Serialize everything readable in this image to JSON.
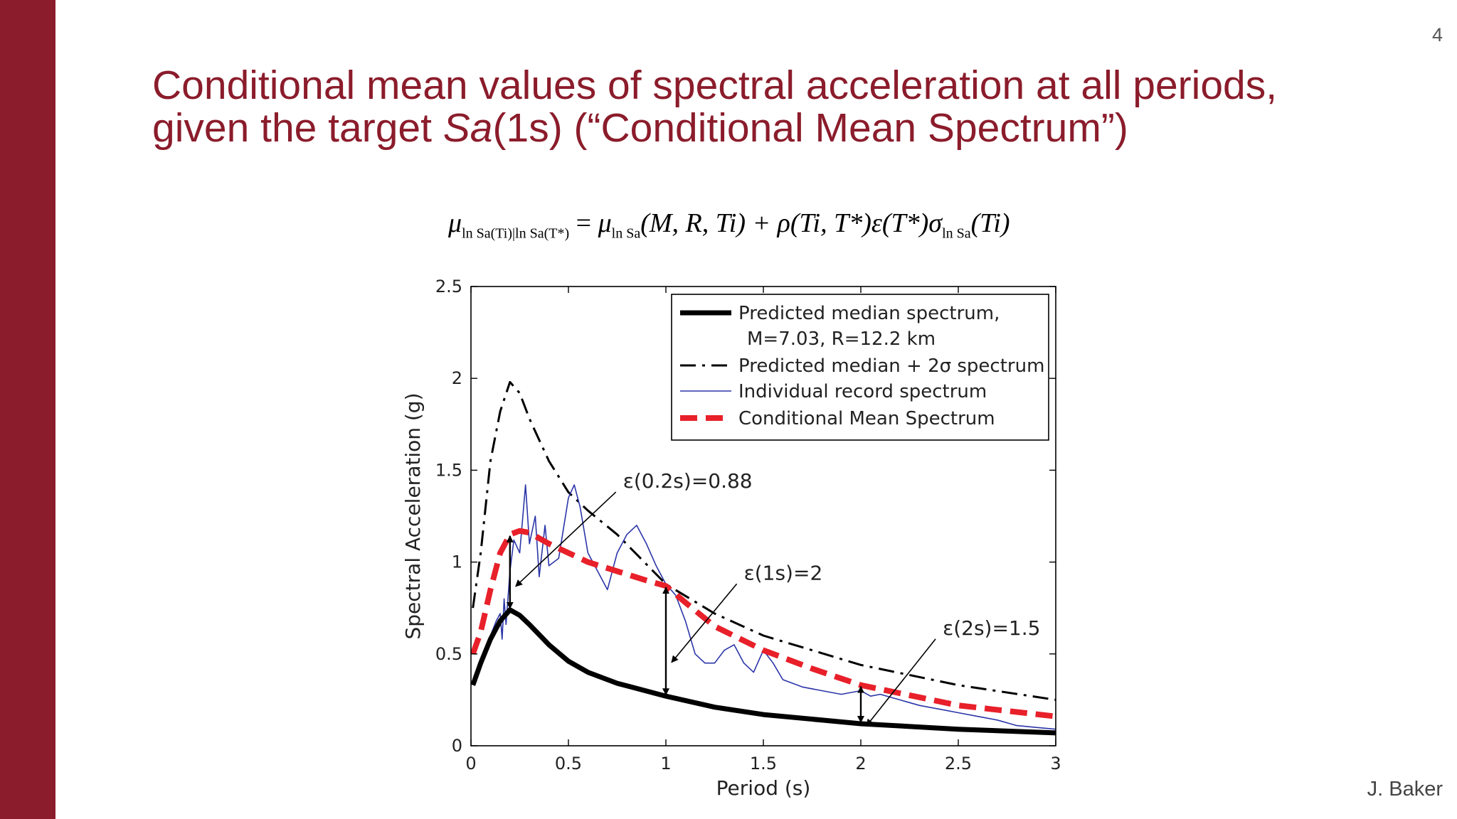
{
  "slide": {
    "number": "4",
    "title_line1": "Conditional mean values of spectral acceleration at all periods,",
    "title_line2_pre": "given the target ",
    "title_line2_ital": "Sa",
    "title_line2_post": "(1s) (“Conditional Mean Spectrum”)",
    "author": "J. Baker",
    "accent_color": "#8b1c2b"
  },
  "formula": {
    "lhs_mu": "μ",
    "lhs_sub": "ln Sa(Ti)|ln Sa(T*)",
    "equals": " = ",
    "rhs_mu": "μ",
    "rhs_sub": "ln Sa",
    "rhs_args": "(M, R, Ti) + ρ(Ti, T*)ε(T*)σ",
    "sigma_sub": "ln Sa",
    "tail": "(Ti)"
  },
  "chart_data": {
    "type": "line",
    "xlabel": "Period (s)",
    "ylabel": "Spectral Acceleration (g)",
    "xlim": [
      0,
      3
    ],
    "ylim": [
      0,
      2.5
    ],
    "xticks": [
      0,
      0.5,
      1,
      1.5,
      2,
      2.5,
      3
    ],
    "xtick_labels": [
      "0",
      "0.5",
      "1",
      "1.5",
      "2",
      "2.5",
      "3"
    ],
    "yticks": [
      0,
      0.5,
      1,
      1.5,
      2,
      2.5
    ],
    "ytick_labels": [
      "0",
      "0.5",
      "1",
      "1.5",
      "2",
      "2.5"
    ],
    "legend_position": "top-right",
    "legend": [
      {
        "label": "Predicted median spectrum,",
        "label2": "M=7.03, R=12.2 km",
        "style": "solid-thick",
        "color": "#000000"
      },
      {
        "label": "Predicted median + 2σ spectrum",
        "style": "dashdot",
        "color": "#000000"
      },
      {
        "label": "Individual record spectrum",
        "style": "thin",
        "color": "#2b35a8"
      },
      {
        "label": "Conditional Mean Spectrum",
        "style": "dashed-thick",
        "color": "#e8202a"
      }
    ],
    "series": [
      {
        "name": "Predicted median + 2σ spectrum",
        "x": [
          0.01,
          0.05,
          0.1,
          0.15,
          0.2,
          0.25,
          0.3,
          0.4,
          0.5,
          0.6,
          0.75,
          1.0,
          1.25,
          1.5,
          2.0,
          2.5,
          3.0
        ],
        "y": [
          0.75,
          1.05,
          1.55,
          1.82,
          1.98,
          1.92,
          1.78,
          1.55,
          1.38,
          1.28,
          1.15,
          0.88,
          0.72,
          0.6,
          0.44,
          0.33,
          0.25
        ]
      },
      {
        "name": "Individual record spectrum",
        "x": [
          0.01,
          0.05,
          0.1,
          0.13,
          0.15,
          0.16,
          0.17,
          0.18,
          0.2,
          0.22,
          0.25,
          0.28,
          0.3,
          0.33,
          0.35,
          0.38,
          0.4,
          0.45,
          0.5,
          0.53,
          0.56,
          0.6,
          0.65,
          0.7,
          0.75,
          0.8,
          0.85,
          0.9,
          0.95,
          1.0,
          1.05,
          1.1,
          1.15,
          1.2,
          1.25,
          1.3,
          1.35,
          1.4,
          1.45,
          1.5,
          1.55,
          1.6,
          1.7,
          1.8,
          1.9,
          2.0,
          2.05,
          2.1,
          2.2,
          2.3,
          2.4,
          2.5,
          2.6,
          2.7,
          2.8,
          2.9,
          3.0
        ],
        "y": [
          0.34,
          0.45,
          0.6,
          0.68,
          0.72,
          0.58,
          0.8,
          0.66,
          0.95,
          1.12,
          1.05,
          1.42,
          1.1,
          1.25,
          0.92,
          1.2,
          0.98,
          1.02,
          1.35,
          1.42,
          1.3,
          1.05,
          0.95,
          0.85,
          1.05,
          1.15,
          1.2,
          1.1,
          0.98,
          0.88,
          0.82,
          0.68,
          0.5,
          0.45,
          0.45,
          0.52,
          0.55,
          0.45,
          0.4,
          0.52,
          0.45,
          0.36,
          0.32,
          0.3,
          0.28,
          0.3,
          0.27,
          0.28,
          0.25,
          0.22,
          0.2,
          0.18,
          0.16,
          0.14,
          0.11,
          0.1,
          0.09
        ]
      },
      {
        "name": "Conditional Mean Spectrum",
        "x": [
          0.01,
          0.05,
          0.1,
          0.15,
          0.2,
          0.25,
          0.3,
          0.4,
          0.5,
          0.6,
          0.75,
          0.9,
          1.0,
          1.1,
          1.25,
          1.5,
          1.75,
          2.0,
          2.5,
          3.0
        ],
        "y": [
          0.5,
          0.62,
          0.85,
          1.05,
          1.15,
          1.17,
          1.16,
          1.1,
          1.05,
          1.0,
          0.95,
          0.9,
          0.87,
          0.78,
          0.65,
          0.52,
          0.42,
          0.33,
          0.22,
          0.16
        ]
      },
      {
        "name": "Predicted median spectrum",
        "x": [
          0.01,
          0.05,
          0.1,
          0.15,
          0.2,
          0.25,
          0.3,
          0.4,
          0.5,
          0.6,
          0.75,
          1.0,
          1.25,
          1.5,
          2.0,
          2.5,
          3.0
        ],
        "y": [
          0.33,
          0.45,
          0.58,
          0.68,
          0.74,
          0.71,
          0.66,
          0.55,
          0.46,
          0.4,
          0.34,
          0.27,
          0.21,
          0.17,
          0.12,
          0.09,
          0.07
        ]
      }
    ],
    "annotations": [
      {
        "text": "ε(0.2s)=0.88",
        "period": 0.2,
        "y_low": 0.74,
        "y_high": 1.15,
        "text_x": 0.78,
        "text_y": 1.42
      },
      {
        "text": "ε(1s)=2",
        "period": 1.0,
        "y_low": 0.27,
        "y_high": 0.87,
        "text_x": 1.4,
        "text_y": 0.92
      },
      {
        "text": "ε(2s)=1.5",
        "period": 2.0,
        "y_low": 0.12,
        "y_high": 0.33,
        "text_x": 2.42,
        "text_y": 0.62
      }
    ]
  }
}
